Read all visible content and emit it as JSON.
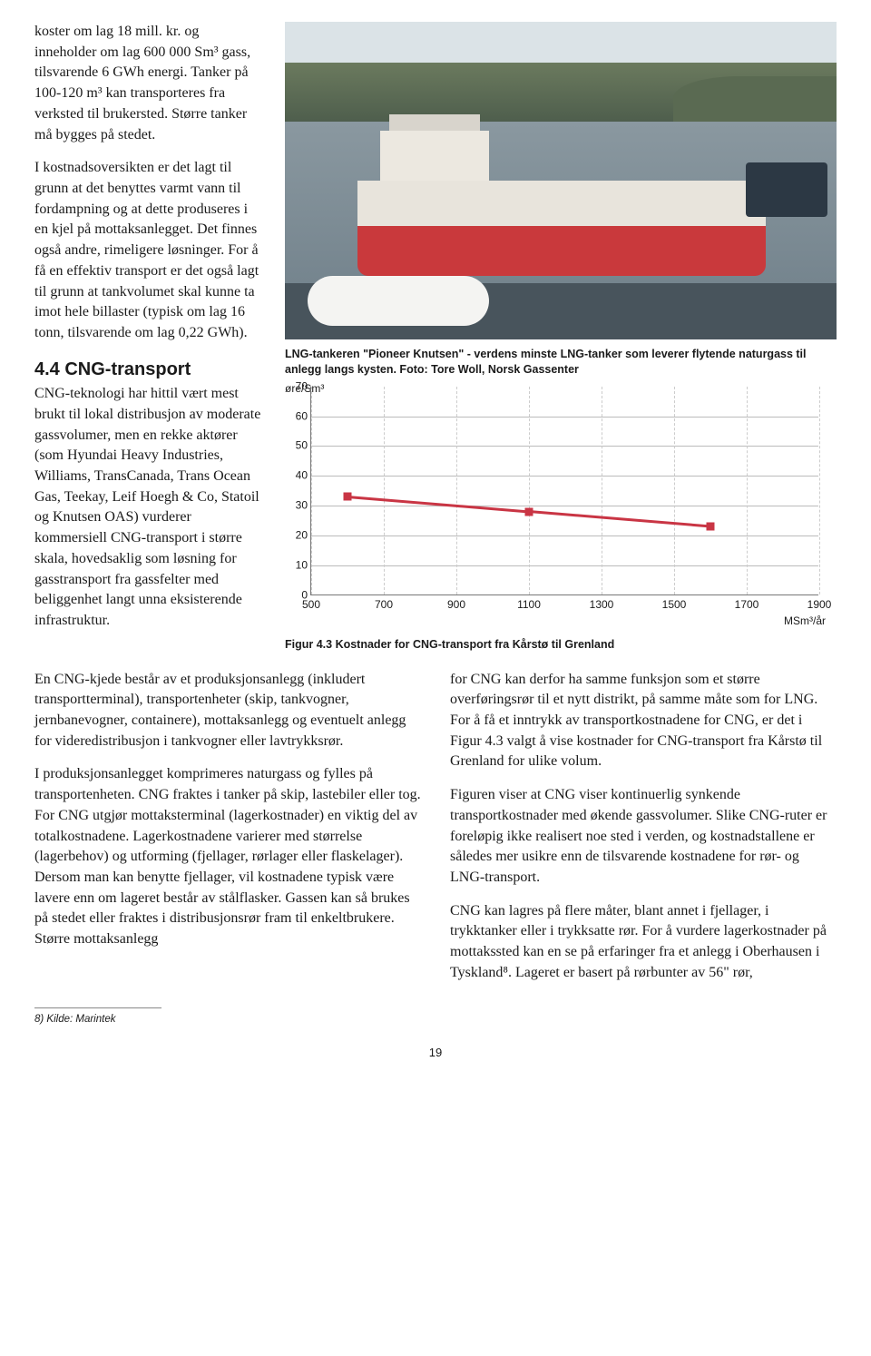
{
  "left": {
    "p1": "koster om lag 18 mill. kr. og inneholder om lag 600 000 Sm³ gass, tilsvarende 6 GWh energi. Tanker på 100-120 m³ kan transporteres fra verksted til brukersted. Større tanker må bygges på stedet.",
    "p2": "I kostnadsoversikten er det lagt til grunn at det benyttes varmt vann til fordampning og at dette produseres i en kjel på mottaksanlegget. Det finnes også andre, rimeligere løsninger. For å få en effektiv transport er det også lagt til grunn at tankvolumet skal kunne ta imot hele billaster (typisk om lag 16 tonn, tilsvarende om lag 0,22 GWh).",
    "h2": "4.4 CNG-transport",
    "p3": "CNG-teknologi har hittil vært mest brukt til lokal distribusjon av moderate gassvolumer, men en rekke aktører (som Hyundai Heavy Industries, Williams, TransCanada, Trans Ocean Gas, Teekay, Leif Hoegh & Co, Statoil og Knutsen OAS) vurderer kommersiell CNG-transport i større skala, hovedsaklig som løsning for gasstransport fra gassfelter med beliggenhet langt unna eksisterende infrastruktur."
  },
  "photo_caption": "LNG-tankeren \"Pioneer Knutsen\" - verdens minste LNG-tanker som leverer flytende naturgass til anlegg langs kysten. Foto: Tore Woll, Norsk Gassenter",
  "chart": {
    "y_unit": "øre/Sm³",
    "y_ticks": [
      "0",
      "10",
      "20",
      "30",
      "40",
      "50",
      "60",
      "70"
    ],
    "x_ticks": [
      "500",
      "700",
      "900",
      "1100",
      "1300",
      "1500",
      "1700",
      "1900"
    ],
    "x_unit": "MSm³/år",
    "y_max": 70,
    "x_min": 500,
    "x_max": 1900,
    "series": {
      "color": "#c93544",
      "points": [
        {
          "x": 600,
          "y": 33
        },
        {
          "x": 1100,
          "y": 28
        },
        {
          "x": 1600,
          "y": 23
        }
      ]
    },
    "caption": "Figur 4.3 Kostnader for CNG-transport fra Kårstø til Grenland"
  },
  "lower": {
    "p1": "En CNG-kjede består av et produksjonsanlegg (inkludert transportterminal), transportenheter (skip, tankvogner, jernbanevogner, containere), mottaksanlegg og eventuelt anlegg for videredistribusjon i tankvogner eller lavtrykksrør.",
    "p2": "I produksjonsanlegget komprimeres naturgass og fylles på transportenheten. CNG fraktes i tanker på skip, lastebiler eller tog. For CNG utgjør mottaksterminal (lagerkostnader) en viktig del av totalkostnadene. Lagerkostnadene varierer med størrelse (lagerbehov) og utforming (fjellager, rørlager eller flaskelager). Dersom man kan benytte fjellager, vil kostnadene typisk være lavere enn om lageret består av stålflasker. Gassen kan så brukes på stedet eller fraktes i distribusjonsrør fram til enkeltbrukere. Større mottaksanlegg",
    "p3": "for CNG kan derfor ha samme funksjon som et større overføringsrør til et nytt distrikt, på samme måte som for LNG. For å få et inntrykk av transportkostnadene for CNG, er det i Figur 4.3 valgt å vise kostnader for CNG-transport fra Kårstø til Grenland for ulike volum.",
    "p4": "Figuren viser at CNG viser kontinuerlig synkende transportkostnader med økende gassvolumer. Slike CNG-ruter er foreløpig ikke realisert noe sted i verden, og kostnadstallene er således mer usikre enn de tilsvarende kostnadene for rør- og LNG-transport.",
    "p5": "CNG kan lagres på flere måter, blant annet i fjellager, i trykktanker eller i trykksatte rør. For å vurdere lagerkostnader på mottakssted kan en se på erfaringer fra et anlegg i Oberhausen i Tyskland⁸. Lageret er basert på rørbunter av 56\" rør,"
  },
  "footnote": "8) Kilde: Marintek",
  "page_number": "19"
}
